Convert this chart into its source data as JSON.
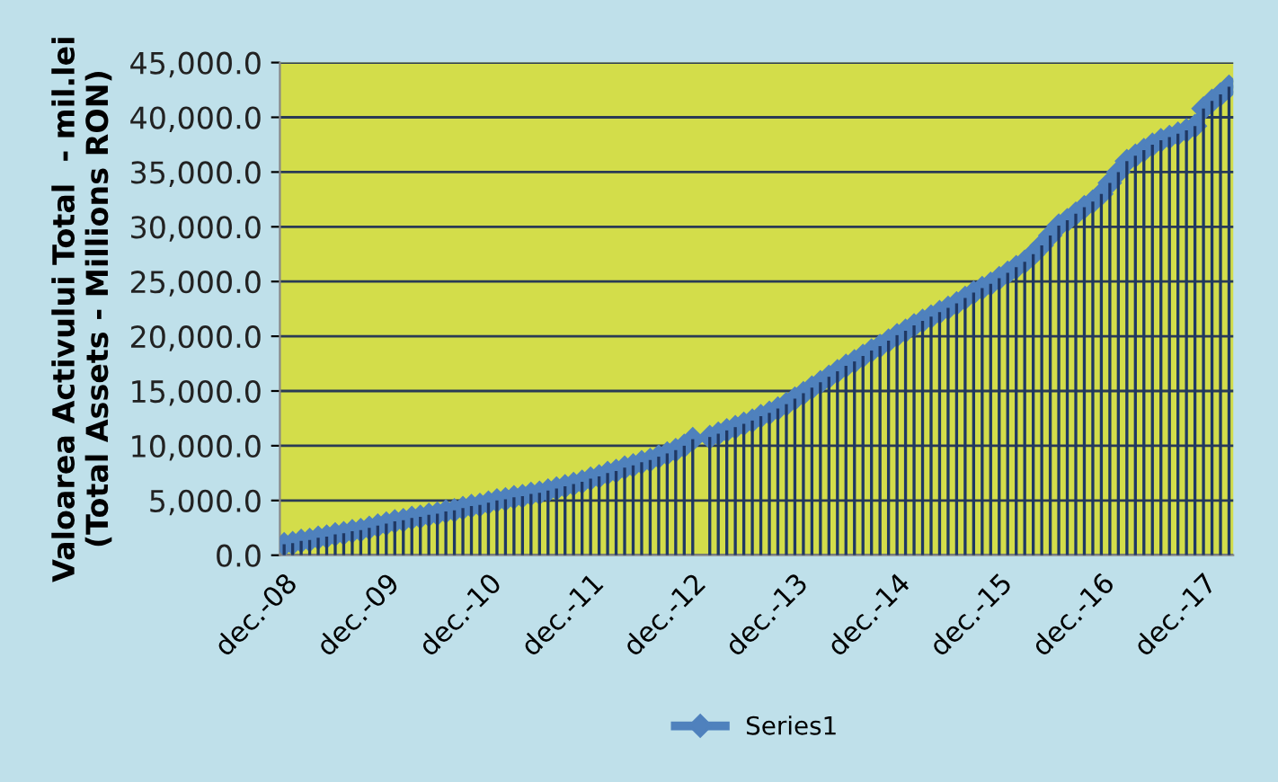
{
  "chart_data": {
    "type": "line",
    "ylabel": "Valoarea Activului Total  - mil.lei\n(Total Assets - Millions RON)",
    "categories": [
      "dec.-08",
      null,
      null,
      null,
      null,
      null,
      null,
      null,
      null,
      null,
      null,
      null,
      "dec.-09",
      null,
      null,
      null,
      null,
      null,
      null,
      null,
      null,
      null,
      null,
      null,
      "dec.-10",
      null,
      null,
      null,
      null,
      null,
      null,
      null,
      null,
      null,
      null,
      null,
      "dec.-11",
      null,
      null,
      null,
      null,
      null,
      null,
      null,
      null,
      null,
      null,
      null,
      "dec.-12",
      null,
      null,
      null,
      null,
      null,
      null,
      null,
      null,
      null,
      null,
      null,
      "dec.-13",
      null,
      null,
      null,
      null,
      null,
      null,
      null,
      null,
      null,
      null,
      null,
      "dec.-14",
      null,
      null,
      null,
      null,
      null,
      null,
      null,
      null,
      null,
      null,
      null,
      "dec.-15",
      null,
      null,
      null,
      null,
      null,
      null,
      null,
      null,
      null,
      null,
      null,
      "dec.-16",
      null,
      null,
      null,
      null,
      null,
      null,
      null,
      null,
      null,
      null,
      null,
      "dec.-17",
      null,
      null,
      null
    ],
    "series": [
      {
        "type": "bar",
        "color": "#1f3864",
        "values": [
          1000,
          1100,
          1300,
          1400,
          1600,
          1700,
          1900,
          2000,
          2200,
          2300,
          2500,
          2700,
          2900,
          3100,
          3200,
          3400,
          3500,
          3700,
          3800,
          4000,
          4100,
          4300,
          4500,
          4600,
          4800,
          5000,
          5100,
          5300,
          5400,
          5600,
          5700,
          5900,
          6100,
          6300,
          6500,
          6700,
          7000,
          7200,
          7500,
          7700,
          8000,
          8200,
          8500,
          8700,
          9000,
          9300,
          9600,
          10000,
          10600,
          null,
          10800,
          11100,
          11400,
          11700,
          12000,
          12300,
          12700,
          13000,
          13400,
          13800,
          14300,
          14800,
          15300,
          15800,
          16300,
          16800,
          17300,
          17700,
          18200,
          18700,
          19100,
          19600,
          20100,
          20500,
          21000,
          21400,
          21800,
          22200,
          22600,
          23000,
          23500,
          24000,
          24400,
          24800,
          25300,
          25800,
          26300,
          26800,
          27500,
          28300,
          29200,
          30100,
          30600,
          31200,
          31800,
          32300,
          33000,
          34000,
          35000,
          36000,
          36500,
          37000,
          37500,
          37900,
          38200,
          38500,
          38800,
          39200,
          40800,
          41500,
          42100,
          42800
        ]
      },
      {
        "name": "Series1",
        "color": "#4f81bd",
        "values": [
          1000,
          1100,
          1300,
          1400,
          1600,
          1700,
          1900,
          2000,
          2200,
          2300,
          2500,
          2700,
          2900,
          3100,
          3200,
          3400,
          3500,
          3700,
          3800,
          4000,
          4100,
          4300,
          4500,
          4600,
          4800,
          5000,
          5100,
          5300,
          5400,
          5600,
          5700,
          5900,
          6100,
          6300,
          6500,
          6700,
          7000,
          7200,
          7500,
          7700,
          8000,
          8200,
          8500,
          8700,
          9000,
          9300,
          9600,
          10000,
          10600,
          null,
          10800,
          11100,
          11400,
          11700,
          12000,
          12300,
          12700,
          13000,
          13400,
          13800,
          14300,
          14800,
          15300,
          15800,
          16300,
          16800,
          17300,
          17700,
          18200,
          18700,
          19100,
          19600,
          20100,
          20500,
          21000,
          21400,
          21800,
          22200,
          22600,
          23000,
          23500,
          24000,
          24400,
          24800,
          25300,
          25800,
          26300,
          26800,
          27500,
          28300,
          29200,
          30100,
          30600,
          31200,
          31800,
          32300,
          33000,
          34000,
          35000,
          36000,
          36500,
          37000,
          37500,
          37900,
          38200,
          38500,
          38800,
          39200,
          40800,
          41500,
          42100,
          42800
        ]
      }
    ],
    "ylim": [
      0,
      45000
    ],
    "yticks": [
      {
        "value": 0,
        "label": "0.0"
      },
      {
        "value": 5000,
        "label": "5,000.0"
      },
      {
        "value": 10000,
        "label": "10,000.0"
      },
      {
        "value": 15000,
        "label": "15,000.0"
      },
      {
        "value": 20000,
        "label": "20,000.0"
      },
      {
        "value": 25000,
        "label": "25,000.0"
      },
      {
        "value": 30000,
        "label": "30,000.0"
      },
      {
        "value": 35000,
        "label": "35,000.0"
      },
      {
        "value": 40000,
        "label": "40,000.0"
      },
      {
        "value": 45000,
        "label": "45,000.0"
      }
    ],
    "grid": "y",
    "legend": "bottom",
    "marker": "diamond",
    "line_style": "solid"
  }
}
